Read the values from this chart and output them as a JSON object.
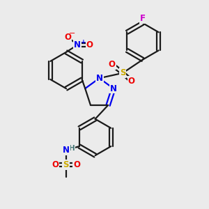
{
  "bg_color": "#ebebeb",
  "bond_color": "#1a1a1a",
  "bond_width": 1.6,
  "atom_colors": {
    "N": "#0000ee",
    "O": "#ee0000",
    "S": "#ccaa00",
    "F": "#cc00cc",
    "H": "#447777",
    "C": "#1a1a1a"
  },
  "font_size": 8.5
}
